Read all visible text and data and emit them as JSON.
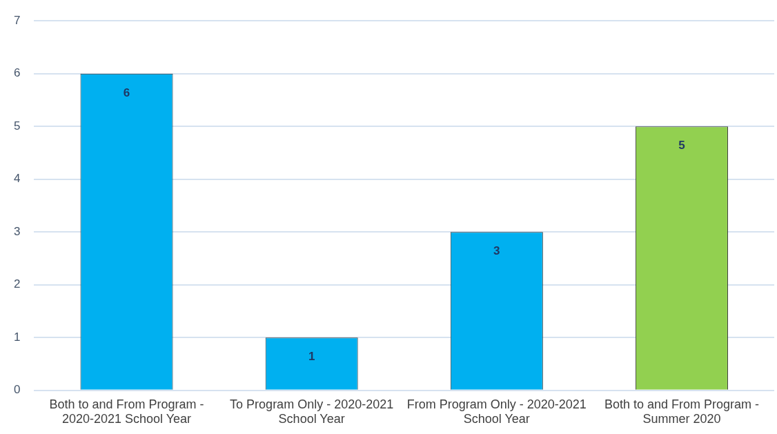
{
  "chart_data": {
    "type": "bar",
    "categories": [
      "Both to and From Program - 2020-2021 School Year",
      "To Program Only - 2020-2021 School Year",
      "From Program Only - 2020-2021 School Year",
      "Both to and From Program - Summer 2020"
    ],
    "values": [
      6,
      1,
      3,
      5
    ],
    "colors": [
      "#00b0f0",
      "#00b0f0",
      "#00b0f0",
      "#92d050"
    ],
    "ylim": [
      0,
      7
    ],
    "yticks": [
      0,
      1,
      2,
      3,
      4,
      5,
      6,
      7
    ],
    "grid": "y",
    "data_labels": true,
    "legend": false
  }
}
